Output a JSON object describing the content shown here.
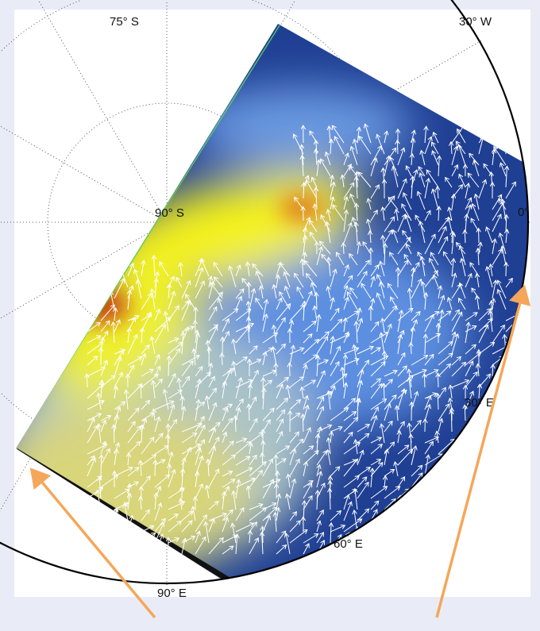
{
  "grid_labels": [
    "75° S",
    "30° W",
    "90° S",
    "0°",
    "30° E",
    "60° E",
    "90° E"
  ]
}
